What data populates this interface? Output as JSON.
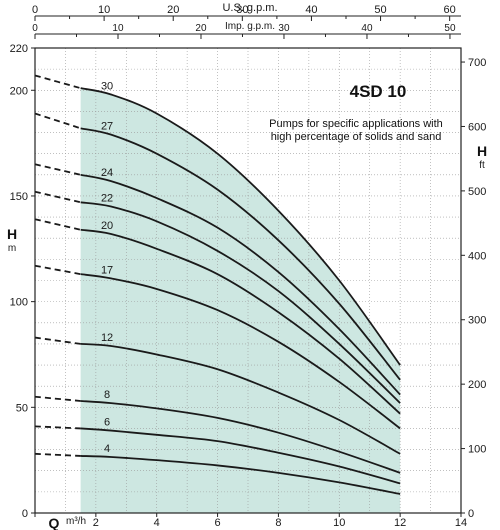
{
  "chart_data": {
    "type": "line",
    "title": "4SD 10",
    "subtitle_lines": [
      "Pumps for specific applications with",
      "high percentage of solids and sand"
    ],
    "x_axis": {
      "symbol": "Q",
      "unit": "m³/h",
      "range": [
        0,
        14
      ],
      "ticks": [
        0,
        2,
        4,
        6,
        8,
        10,
        12,
        14
      ]
    },
    "top_axes": [
      {
        "label": "U.S. g.p.m.",
        "range": [
          0,
          61.64
        ],
        "ticks": [
          0,
          10,
          20,
          30,
          40,
          50,
          60
        ]
      },
      {
        "label": "Imp. g.p.m.",
        "range": [
          0,
          51.33
        ],
        "ticks": [
          0,
          10,
          20,
          30,
          40,
          50
        ]
      }
    ],
    "y_axis_left": {
      "symbol": "H",
      "unit": "m",
      "range": [
        0,
        220
      ],
      "ticks": [
        0,
        50,
        100,
        150,
        200,
        220
      ]
    },
    "y_axis_right": {
      "symbol": "H",
      "unit": "ft",
      "range": [
        0,
        721.8
      ],
      "ticks": [
        0,
        100,
        200,
        300,
        400,
        500,
        600,
        700
      ]
    },
    "operating_range": [
      1.5,
      12
    ],
    "series": [
      {
        "name": "30",
        "label_x": 2.5,
        "points": [
          [
            0,
            207
          ],
          [
            1.5,
            201
          ],
          [
            2.5,
            198
          ],
          [
            4,
            189
          ],
          [
            6,
            170
          ],
          [
            8,
            143
          ],
          [
            10,
            110
          ],
          [
            12,
            70
          ]
        ]
      },
      {
        "name": "27",
        "label_x": 2.5,
        "points": [
          [
            0,
            189
          ],
          [
            1.5,
            182
          ],
          [
            2.5,
            179
          ],
          [
            4,
            170
          ],
          [
            6,
            153
          ],
          [
            8,
            129
          ],
          [
            10,
            99
          ],
          [
            12,
            63
          ]
        ]
      },
      {
        "name": "24",
        "label_x": 2.5,
        "points": [
          [
            0,
            165
          ],
          [
            1.5,
            160
          ],
          [
            2.5,
            157
          ],
          [
            4,
            149
          ],
          [
            6,
            135
          ],
          [
            8,
            114
          ],
          [
            10,
            87
          ],
          [
            12,
            56
          ]
        ]
      },
      {
        "name": "22",
        "label_x": 2.5,
        "points": [
          [
            0,
            152
          ],
          [
            1.5,
            147
          ],
          [
            2.5,
            145
          ],
          [
            4,
            138
          ],
          [
            6,
            124
          ],
          [
            8,
            105
          ],
          [
            10,
            80
          ],
          [
            12,
            52
          ]
        ]
      },
      {
        "name": "20",
        "label_x": 2.5,
        "points": [
          [
            0,
            139
          ],
          [
            1.5,
            134
          ],
          [
            2.5,
            132
          ],
          [
            4,
            125
          ],
          [
            6,
            113
          ],
          [
            8,
            95
          ],
          [
            10,
            73
          ],
          [
            12,
            47
          ]
        ]
      },
      {
        "name": "17",
        "label_x": 2.5,
        "points": [
          [
            0,
            117
          ],
          [
            1.5,
            113
          ],
          [
            2.5,
            111
          ],
          [
            4,
            106
          ],
          [
            6,
            96
          ],
          [
            8,
            81
          ],
          [
            10,
            62
          ],
          [
            12,
            40
          ]
        ]
      },
      {
        "name": "12",
        "label_x": 2.5,
        "points": [
          [
            0,
            83
          ],
          [
            1.5,
            80
          ],
          [
            2.5,
            79
          ],
          [
            4,
            75
          ],
          [
            6,
            68
          ],
          [
            8,
            57
          ],
          [
            10,
            44
          ],
          [
            12,
            28
          ]
        ]
      },
      {
        "name": "8",
        "label_x": 2.5,
        "points": [
          [
            0,
            55
          ],
          [
            1.5,
            53
          ],
          [
            2.5,
            52
          ],
          [
            4,
            49.5
          ],
          [
            6,
            45
          ],
          [
            8,
            38
          ],
          [
            10,
            29
          ],
          [
            12,
            19
          ]
        ]
      },
      {
        "name": "6",
        "label_x": 2.5,
        "points": [
          [
            0,
            41
          ],
          [
            1.5,
            40
          ],
          [
            2.5,
            39
          ],
          [
            4,
            37
          ],
          [
            6,
            34
          ],
          [
            8,
            28.5
          ],
          [
            10,
            22
          ],
          [
            12,
            14
          ]
        ]
      },
      {
        "name": "4",
        "label_x": 2.5,
        "points": [
          [
            0,
            28
          ],
          [
            1.5,
            27
          ],
          [
            2.5,
            26.5
          ],
          [
            4,
            25
          ],
          [
            6,
            22.5
          ],
          [
            8,
            19
          ],
          [
            10,
            14.5
          ],
          [
            12,
            9
          ]
        ]
      }
    ],
    "shade_color": "#cde7e1",
    "curve_color": "#1a1a1a",
    "grid": "dotted"
  }
}
